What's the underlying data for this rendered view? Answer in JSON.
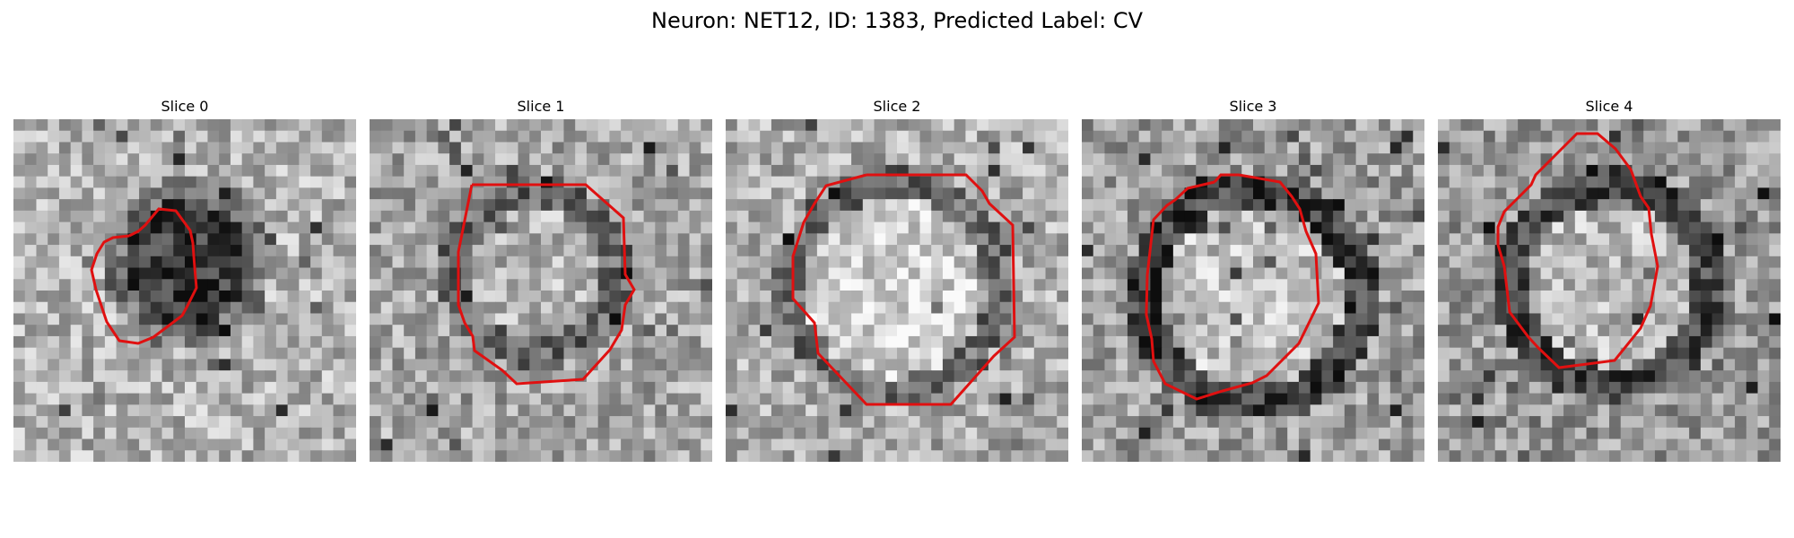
{
  "figure": {
    "title": "Neuron: NET12, ID: 1383, Predicted Label: CV",
    "contour_color": "#e01010",
    "panels": [
      {
        "title": "Slice 0",
        "scene": "small dark cell body outlined by a red octagonal contour in a grainy grayscale micrograph"
      },
      {
        "title": "Slice 1",
        "scene": "bright round cell interior with dark lower rim outlined by a red contour"
      },
      {
        "title": "Slice 2",
        "scene": "large bright circular cell outlined by a red octagonal contour with a darker surrounding ring"
      },
      {
        "title": "Slice 3",
        "scene": "bright cell with thick dark ring outlined by a red contour"
      },
      {
        "title": "Slice 4",
        "scene": "bright cell with dark upper-left ring outlined by a tilted red contour"
      }
    ]
  }
}
